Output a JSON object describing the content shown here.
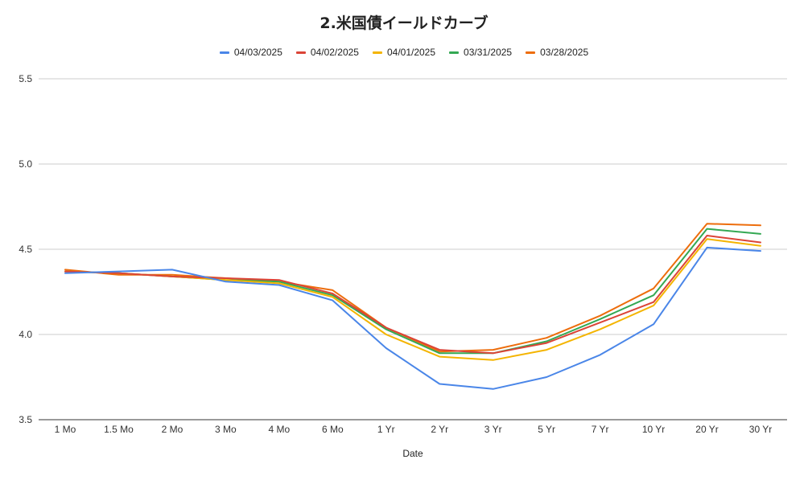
{
  "chart_data": {
    "type": "line",
    "title": "2.米国債イールドカーブ",
    "xlabel": "Date",
    "ylabel": "",
    "ylim": [
      3.5,
      5.5
    ],
    "yticks": [
      "3.5",
      "4.0",
      "4.5",
      "5.0",
      "5.5"
    ],
    "grid": true,
    "legend": "top",
    "categories": [
      "1 Mo",
      "1.5 Mo",
      "2 Mo",
      "3 Mo",
      "4 Mo",
      "6 Mo",
      "1 Yr",
      "2 Yr",
      "3 Yr",
      "5 Yr",
      "7 Yr",
      "10 Yr",
      "20 Yr",
      "30 Yr"
    ],
    "series": [
      {
        "name": "04/03/2025",
        "color": "#4a86e8",
        "values": [
          4.36,
          4.37,
          4.38,
          4.31,
          4.29,
          4.2,
          3.92,
          3.71,
          3.68,
          3.75,
          3.88,
          4.06,
          4.51,
          4.49
        ]
      },
      {
        "name": "04/02/2025",
        "color": "#db4437",
        "values": [
          4.37,
          4.36,
          4.34,
          4.33,
          4.32,
          4.24,
          4.04,
          3.91,
          3.89,
          3.95,
          4.07,
          4.19,
          4.58,
          4.54
        ]
      },
      {
        "name": "04/01/2025",
        "color": "#f4b400",
        "values": [
          4.37,
          4.36,
          4.34,
          4.32,
          4.3,
          4.22,
          4.0,
          3.87,
          3.85,
          3.91,
          4.03,
          4.17,
          4.56,
          4.52
        ]
      },
      {
        "name": "03/31/2025",
        "color": "#34a853",
        "values": [
          4.37,
          4.36,
          4.34,
          4.32,
          4.31,
          4.23,
          4.03,
          3.89,
          3.89,
          3.96,
          4.09,
          4.23,
          4.62,
          4.59
        ]
      },
      {
        "name": "03/28/2025",
        "color": "#ed6d0c",
        "values": [
          4.38,
          4.35,
          4.35,
          4.33,
          4.31,
          4.26,
          4.04,
          3.9,
          3.91,
          3.98,
          4.11,
          4.27,
          4.65,
          4.64
        ]
      }
    ]
  }
}
